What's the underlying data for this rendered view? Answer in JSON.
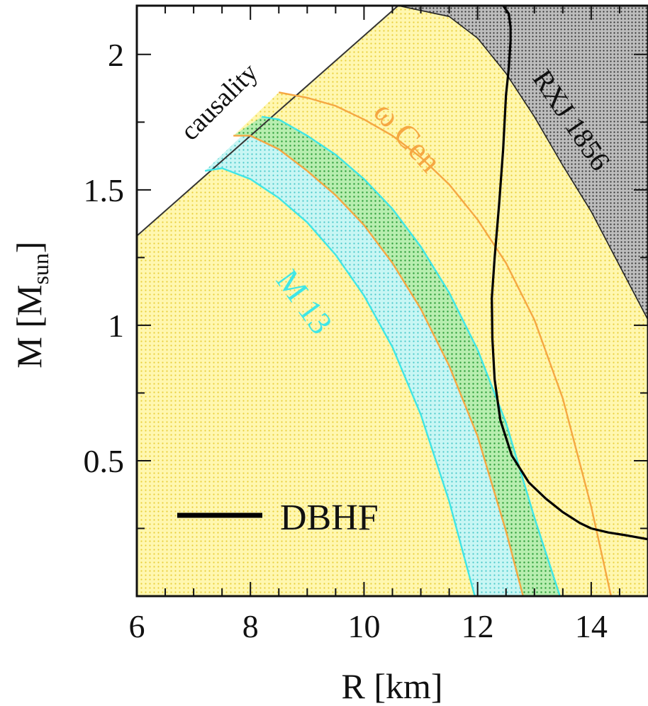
{
  "chart_data": {
    "type": "line",
    "xlabel": "R [km]",
    "ylabel_main": "M [M",
    "ylabel_sub": "sun",
    "ylabel_close": "]",
    "xlim": [
      6,
      15
    ],
    "ylim": [
      0,
      2.18
    ],
    "x_ticks": [
      6,
      8,
      10,
      12,
      14
    ],
    "x_tick_labels": [
      "6",
      "8",
      "10",
      "12",
      "14"
    ],
    "y_ticks": [
      0.5,
      1,
      1.5,
      2
    ],
    "y_tick_labels": [
      "0.5",
      "1",
      "1.5",
      "2"
    ],
    "grid": false,
    "legend": {
      "position": "bottom-left",
      "label": "DBHF"
    },
    "annotations": {
      "causality": "causality",
      "omega_cen": "ω Cen",
      "m13": "M 13",
      "rxj": "RXJ 1856"
    },
    "colors": {
      "allowed_region": "#fff29a",
      "omega_cen": "#f5a742",
      "m13": "#3fe6e6",
      "overlap": "#4fcf55",
      "m13_fill": "#9ff0ee",
      "rxj_fill": "#7a7a7a",
      "dbhf": "#000000"
    },
    "causality_line": {
      "x": [
        6.0,
        10.6
      ],
      "y": [
        1.33,
        2.18
      ]
    },
    "bands": {
      "omega_cen": {
        "inner": {
          "x": [
            7.7,
            8.0,
            8.5,
            9.0,
            9.5,
            10.0,
            10.5,
            11.0,
            11.5,
            12.0,
            12.5,
            12.8
          ],
          "y": [
            1.7,
            1.7,
            1.65,
            1.57,
            1.48,
            1.37,
            1.23,
            1.06,
            0.85,
            0.59,
            0.24,
            0.0
          ]
        },
        "outer": {
          "x": [
            8.5,
            9.0,
            9.5,
            10.0,
            10.5,
            11.0,
            11.5,
            12.0,
            12.5,
            13.0,
            13.5,
            14.0,
            14.35
          ],
          "y": [
            1.86,
            1.84,
            1.81,
            1.76,
            1.7,
            1.62,
            1.52,
            1.39,
            1.23,
            1.02,
            0.73,
            0.33,
            0.0
          ]
        }
      },
      "m13": {
        "inner": {
          "x": [
            7.2,
            7.5,
            8.0,
            8.5,
            9.0,
            9.5,
            10.0,
            10.5,
            11.0,
            11.5,
            11.95
          ],
          "y": [
            1.57,
            1.58,
            1.54,
            1.47,
            1.38,
            1.26,
            1.11,
            0.92,
            0.67,
            0.35,
            0.0
          ]
        },
        "outer": {
          "x": [
            8.2,
            8.5,
            9.0,
            9.5,
            10.0,
            10.5,
            11.0,
            11.5,
            12.0,
            12.5,
            13.0,
            13.45
          ],
          "y": [
            1.77,
            1.76,
            1.7,
            1.63,
            1.54,
            1.43,
            1.29,
            1.12,
            0.91,
            0.64,
            0.29,
            0.0
          ]
        }
      }
    },
    "rxj_region": {
      "x": [
        10.6,
        11.5,
        12.0,
        12.5,
        13.0,
        13.5,
        14.0,
        14.5,
        15.0
      ],
      "y": [
        2.18,
        2.14,
        2.06,
        1.93,
        1.77,
        1.59,
        1.42,
        1.22,
        1.02
      ]
    },
    "series": [
      {
        "name": "DBHF",
        "x": [
          14.0,
          13.8,
          13.5,
          13.2,
          12.9,
          12.6,
          12.4,
          12.3,
          12.26,
          12.25,
          12.3,
          12.38,
          12.45,
          12.5,
          12.55,
          12.58,
          12.58,
          12.55,
          12.45
        ],
        "y": [
          0.25,
          0.27,
          0.31,
          0.36,
          0.42,
          0.52,
          0.65,
          0.8,
          0.95,
          1.1,
          1.25,
          1.45,
          1.65,
          1.85,
          1.95,
          2.05,
          2.1,
          2.15,
          2.18
        ]
      },
      {
        "x": [
          14.0,
          14.3,
          14.6,
          15.0
        ],
        "y": [
          0.25,
          0.235,
          0.225,
          0.21
        ]
      }
    ]
  }
}
